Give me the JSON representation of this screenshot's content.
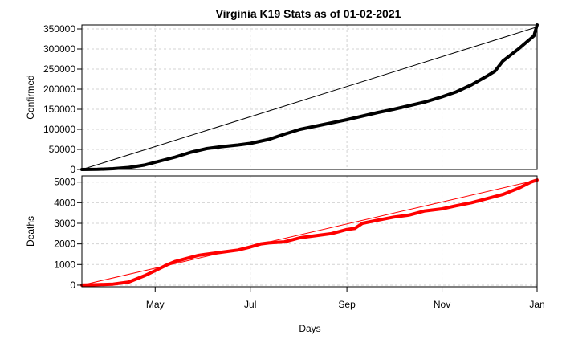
{
  "chart_data": {
    "type": "line",
    "title": "Virginia K19 Stats as of 01-02-2021",
    "xlabel": "Days",
    "x_tick_labels": [
      "May",
      "Jul",
      "Sep",
      "Nov",
      "Jan"
    ],
    "x_tick_days": [
      47,
      108,
      170,
      231,
      292
    ],
    "x_range": [
      0,
      292
    ],
    "grid": true,
    "panels": [
      {
        "ylabel": "Confirmed",
        "ylim": [
          0,
          360000
        ],
        "yticks": [
          0,
          50000,
          100000,
          150000,
          200000,
          250000,
          300000,
          350000
        ],
        "color": "#000000",
        "series": {
          "x": [
            0,
            10,
            20,
            30,
            40,
            47,
            60,
            70,
            80,
            90,
            100,
            108,
            120,
            130,
            140,
            150,
            160,
            170,
            180,
            190,
            200,
            210,
            220,
            231,
            240,
            250,
            260,
            265,
            270,
            280,
            290,
            292
          ],
          "y": [
            0,
            500,
            2000,
            5000,
            11000,
            18000,
            31000,
            43000,
            52000,
            57000,
            61000,
            65000,
            75000,
            88000,
            100000,
            108000,
            116000,
            124000,
            133000,
            142000,
            150000,
            159000,
            168000,
            181000,
            193000,
            211000,
            233000,
            245000,
            270000,
            300000,
            333000,
            360000
          ]
        },
        "reference_line": {
          "from": [
            0,
            0
          ],
          "to": [
            292,
            355000
          ]
        }
      },
      {
        "ylabel": "Deaths",
        "ylim": [
          -80,
          5300
        ],
        "yticks": [
          0,
          1000,
          2000,
          3000,
          4000,
          5000
        ],
        "color": "#ff0000",
        "series": {
          "x": [
            0,
            10,
            20,
            30,
            40,
            47,
            55,
            60,
            70,
            75,
            80,
            90,
            100,
            108,
            115,
            120,
            130,
            140,
            150,
            160,
            165,
            170,
            175,
            180,
            190,
            200,
            210,
            220,
            231,
            240,
            250,
            260,
            270,
            280,
            288,
            292
          ],
          "y": [
            0,
            20,
            50,
            150,
            450,
            700,
            1000,
            1150,
            1350,
            1450,
            1500,
            1600,
            1700,
            1850,
            2000,
            2050,
            2100,
            2300,
            2400,
            2500,
            2600,
            2700,
            2750,
            3000,
            3150,
            3300,
            3400,
            3600,
            3700,
            3850,
            4000,
            4200,
            4400,
            4700,
            5000,
            5100
          ]
        },
        "reference_line": {
          "from": [
            0,
            0
          ],
          "to": [
            292,
            5100
          ]
        }
      }
    ]
  }
}
